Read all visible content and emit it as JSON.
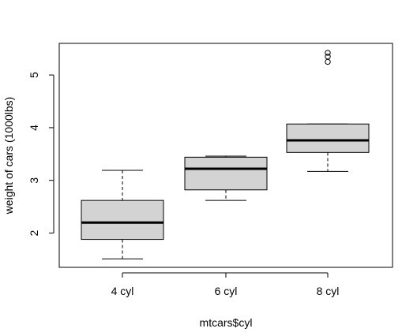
{
  "chart_data": {
    "type": "boxplot",
    "title": "",
    "xlabel": "mtcars$cyl",
    "ylabel": "weight of cars (1000lbs)",
    "categories": [
      "4 cyl",
      "6 cyl",
      "8 cyl"
    ],
    "ylim": [
      1.35,
      5.6
    ],
    "yticks": [
      2,
      3,
      4,
      5
    ],
    "boxes": [
      {
        "name": "4 cyl",
        "whisker_low": 1.51,
        "q1": 1.88,
        "median": 2.2,
        "q3": 2.62,
        "whisker_high": 3.19,
        "outliers": []
      },
      {
        "name": "6 cyl",
        "whisker_low": 2.62,
        "q1": 2.82,
        "median": 3.22,
        "q3": 3.44,
        "whisker_high": 3.46,
        "outliers": []
      },
      {
        "name": "8 cyl",
        "whisker_low": 3.17,
        "q1": 3.53,
        "median": 3.76,
        "q3": 4.07,
        "whisker_high": 4.07,
        "outliers": [
          5.25,
          5.35,
          5.42
        ]
      }
    ],
    "grid": false,
    "legend": "none",
    "colors": {
      "box_fill": "#d3d3d3",
      "stroke": "#000000",
      "background": "#ffffff"
    }
  }
}
